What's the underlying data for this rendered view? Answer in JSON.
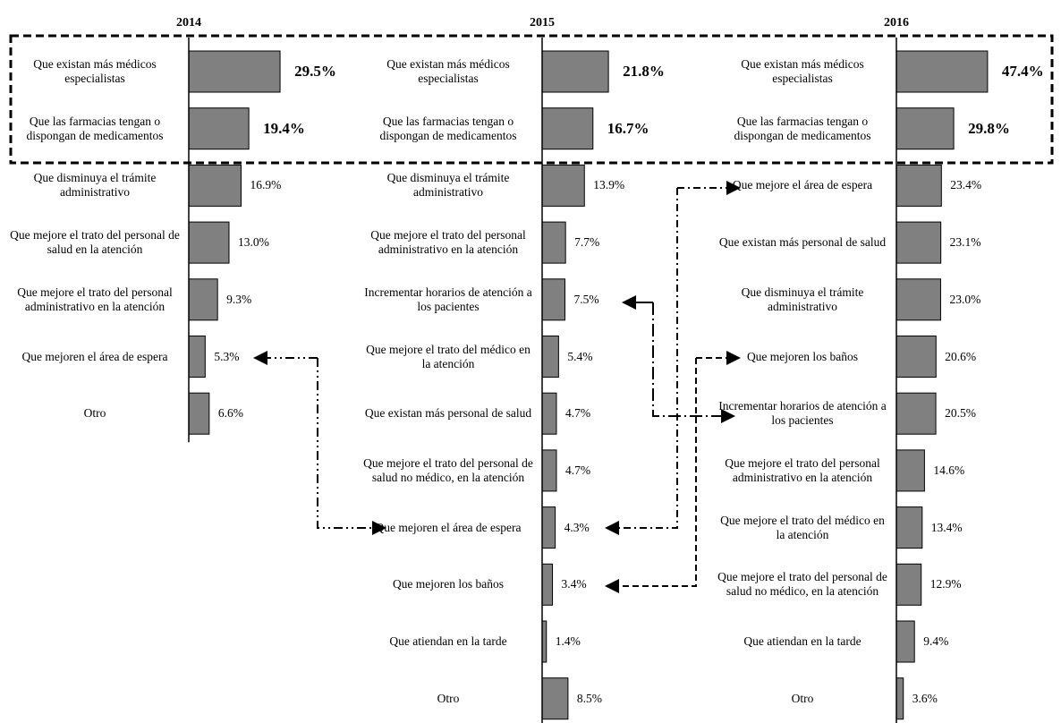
{
  "chart_data": [
    {
      "type": "bar",
      "title": "2014",
      "categories": [
        "Que existan más médicos especialistas",
        "Que las farmacias tengan o dispongan de medicamentos",
        "Que disminuya el trámite administrativo",
        "Que mejore el trato del personal de salud en la atención",
        "Que mejore el trato del personal administrativo en la atención",
        "Que mejoren el área de espera",
        "Otro"
      ],
      "values": [
        29.5,
        19.4,
        16.9,
        13.0,
        9.3,
        5.3,
        6.6
      ],
      "value_labels": [
        "29.5%",
        "19.4%",
        "16.9%",
        "13.0%",
        "9.3%",
        "5.3%",
        "6.6%"
      ],
      "color": "#808080"
    },
    {
      "type": "bar",
      "title": "2015",
      "categories": [
        "Que existan más médicos especialistas",
        "Que las farmacias tengan o dispongan de medicamentos",
        "Que disminuya el trámite administrativo",
        "Que mejore el trato del personal administrativo en la atención",
        "Incrementar horarios de atención a los pacientes",
        "Que mejore el trato del médico en la atención",
        "Que existan más personal de salud",
        "Que mejore el trato del personal de salud no médico, en la atención",
        "Que mejoren el área de espera",
        "Que mejoren los baños",
        "Que atiendan en la tarde",
        "Otro"
      ],
      "values": [
        21.8,
        16.7,
        13.9,
        7.7,
        7.5,
        5.4,
        4.7,
        4.7,
        4.3,
        3.4,
        1.4,
        8.5
      ],
      "value_labels": [
        "21.8%",
        "16.7%",
        "13.9%",
        "7.7%",
        "7.5%",
        "5.4%",
        "4.7%",
        "4.7%",
        "4.3%",
        "3.4%",
        "1.4%",
        "8.5%"
      ],
      "color": "#808080"
    },
    {
      "type": "bar",
      "title": "2016",
      "categories": [
        "Que existan más médicos especialistas",
        "Que las farmacias tengan o dispongan de medicamentos",
        "Que mejore el área de espera",
        "Que existan más personal de salud",
        "Que disminuya el trámite administrativo",
        "Que mejoren los baños",
        "Incrementar horarios de atención a los pacientes",
        "Que mejore el trato del personal administrativo en la atención",
        "Que mejore el trato del médico en la atención",
        "Que mejore el trato del personal de salud no médico, en la atención",
        "Que atiendan en la tarde",
        "Otro"
      ],
      "values": [
        47.4,
        29.8,
        23.4,
        23.1,
        23.0,
        20.6,
        20.5,
        14.6,
        13.4,
        12.9,
        9.4,
        3.6
      ],
      "value_labels": [
        "47.4%",
        "29.8%",
        "23.4%",
        "23.1%",
        "23.0%",
        "20.6%",
        "20.5%",
        "14.6%",
        "13.4%",
        "12.9%",
        "9.4%",
        "3.6%"
      ],
      "color": "#808080"
    }
  ]
}
